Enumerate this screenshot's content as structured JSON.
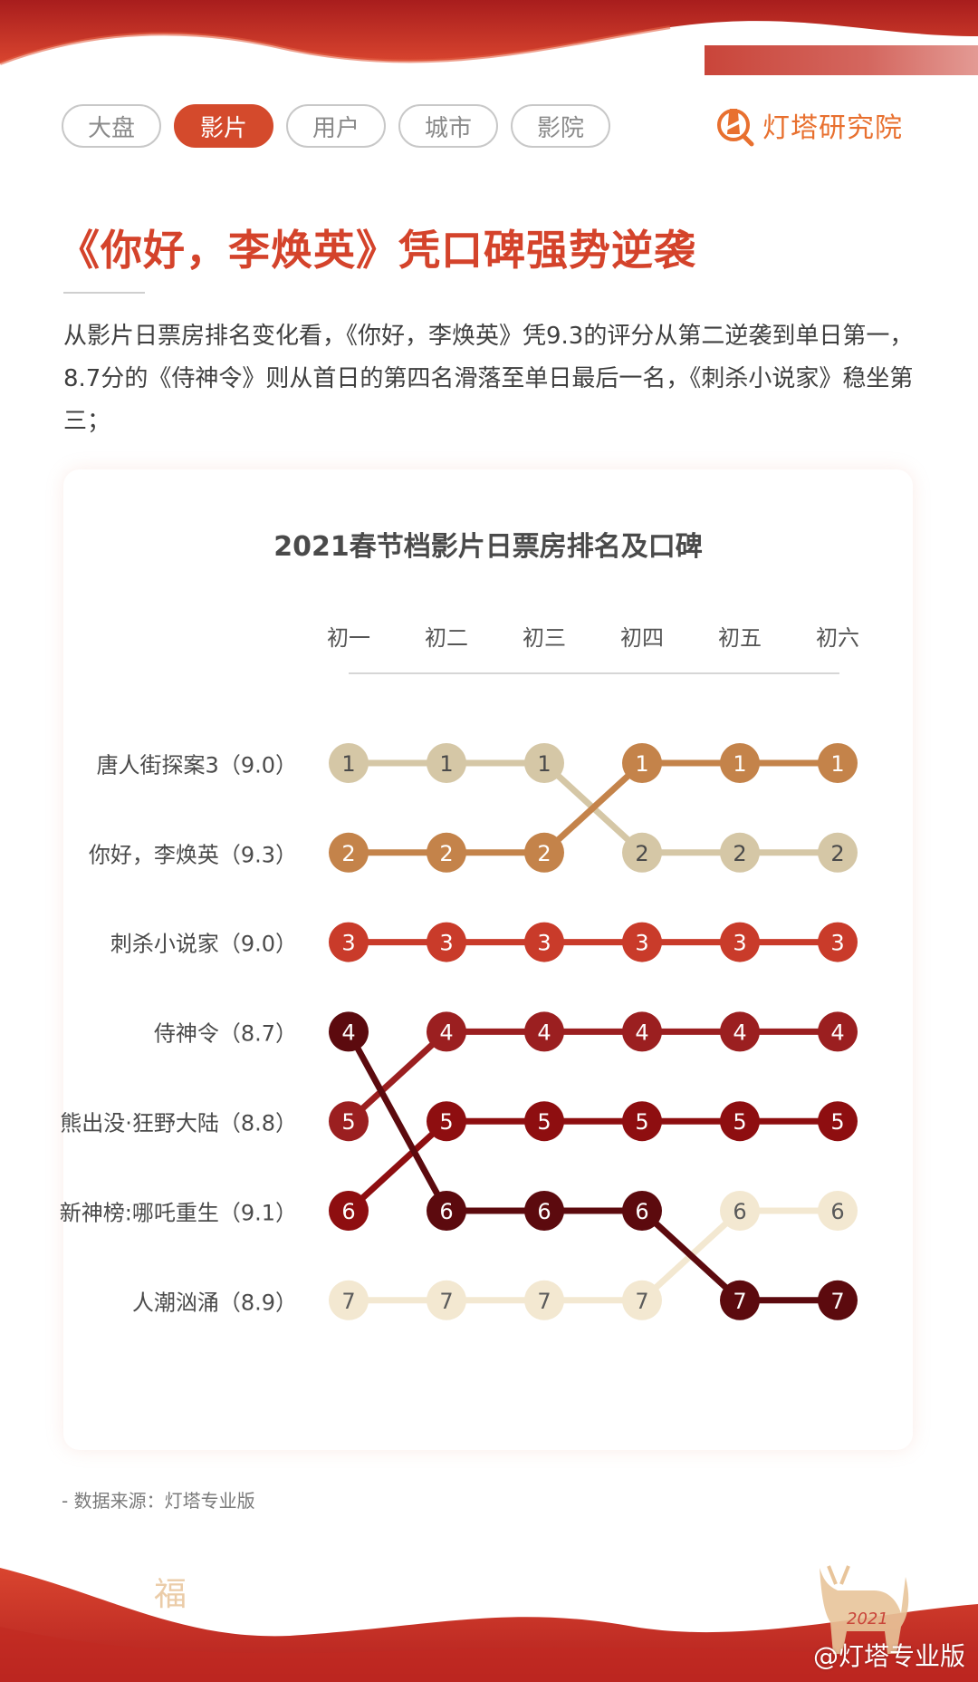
{
  "header": {
    "tabs": [
      {
        "label": "大盘",
        "active": false
      },
      {
        "label": "影片",
        "active": true
      },
      {
        "label": "用户",
        "active": false
      },
      {
        "label": "城市",
        "active": false
      },
      {
        "label": "影院",
        "active": false
      }
    ],
    "brand": "灯塔研究院"
  },
  "article": {
    "headline": "《你好，李焕英》凭口碑强势逆袭",
    "description": "从影片日票房排名变化看，《你好，李焕英》凭9.3的评分从第二逆袭到单日第一，8.7分的《侍神令》则从首日的第四名滑落至单日最后一名，《刺杀小说家》稳坐第三；"
  },
  "chart_data": {
    "type": "line",
    "subtype": "bump",
    "title": "2021春节档影片日票房排名及口碑",
    "xlabel": "",
    "ylabel": "",
    "categories": [
      "初一",
      "初二",
      "初三",
      "初四",
      "初五",
      "初六"
    ],
    "row_labels": [
      "唐人街探案3（9.0）",
      "你好，李焕英（9.3）",
      "刺杀小说家（9.0）",
      "侍神令（8.7）",
      "熊出没·狂野大陆（8.8）",
      "新神榜:哪吒重生（9.1）",
      "人潮汹涌（8.9）"
    ],
    "ylim": [
      1,
      7
    ],
    "y_inverted": true,
    "grid": false,
    "legend": "none",
    "series": [
      {
        "name": "唐人街探案3",
        "rating": 9.0,
        "values": [
          1,
          1,
          1,
          2,
          2,
          2
        ],
        "color": "#d5c7a6",
        "text": "#4a4a4a"
      },
      {
        "name": "你好，李焕英",
        "rating": 9.3,
        "values": [
          2,
          2,
          2,
          1,
          1,
          1
        ],
        "color": "#c4834a",
        "text": "#ffffff"
      },
      {
        "name": "刺杀小说家",
        "rating": 9.0,
        "values": [
          3,
          3,
          3,
          3,
          3,
          3
        ],
        "color": "#c93b2a",
        "text": "#ffffff"
      },
      {
        "name": "侍神令",
        "rating": 8.7,
        "values": [
          4,
          6,
          6,
          6,
          7,
          7
        ],
        "color": "#5c0a0e",
        "text": "#ffffff"
      },
      {
        "name": "熊出没·狂野大陆",
        "rating": 8.8,
        "values": [
          5,
          4,
          4,
          4,
          4,
          4
        ],
        "color": "#9b1f20",
        "text": "#ffffff"
      },
      {
        "name": "新神榜:哪吒重生",
        "rating": 9.1,
        "values": [
          6,
          5,
          5,
          5,
          5,
          5
        ],
        "color": "#8e0e10",
        "text": "#ffffff"
      },
      {
        "name": "人潮汹涌",
        "rating": 8.9,
        "values": [
          7,
          7,
          7,
          7,
          6,
          6
        ],
        "color": "#f3e8d1",
        "text": "#5a5a5a"
      }
    ]
  },
  "footer": {
    "source": "- 数据来源：灯塔专业版",
    "watermark": "@灯塔专业版",
    "decor_char": "福"
  },
  "colors": {
    "brand_red": "#d44a2c",
    "brand_orange": "#e8702f"
  }
}
